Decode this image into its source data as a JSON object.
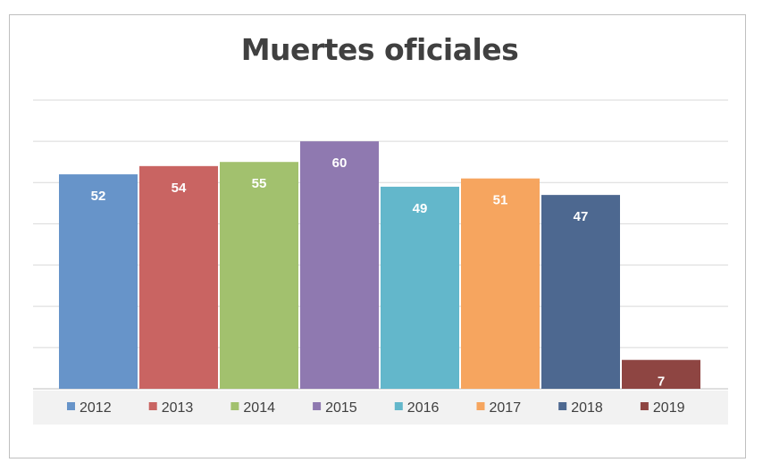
{
  "chart_data": {
    "type": "bar",
    "title": "Muertes oficiales",
    "categories": [
      "2012",
      "2013",
      "2014",
      "2015",
      "2016",
      "2017",
      "2018",
      "2019"
    ],
    "values": [
      52,
      54,
      55,
      60,
      49,
      51,
      47,
      7
    ],
    "colors": [
      "#6794c9",
      "#c96462",
      "#a2c16e",
      "#8f79b0",
      "#63b7cb",
      "#f6a55f",
      "#4d6890",
      "#8e4542"
    ],
    "ylim": [
      0,
      70
    ],
    "grid": true,
    "legend": "bottom",
    "data_labels": true
  }
}
